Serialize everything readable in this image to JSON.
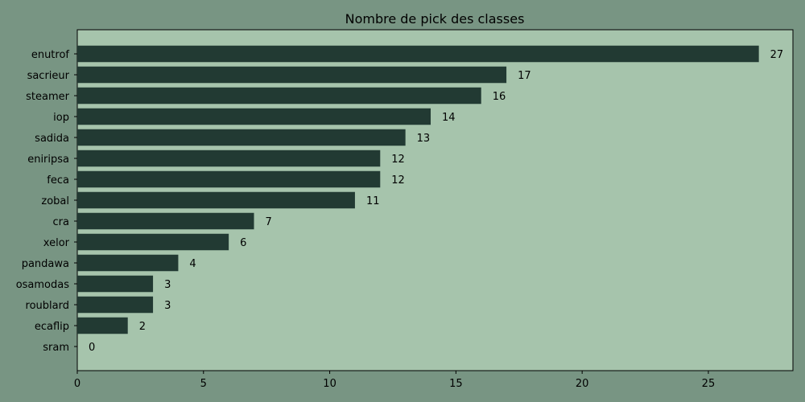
{
  "chart_data": {
    "type": "bar",
    "orientation": "horizontal",
    "title": "Nombre de pick des classes",
    "xlabel": "",
    "ylabel": "",
    "categories": [
      "enutrof",
      "sacrieur",
      "steamer",
      "iop",
      "sadida",
      "eniripsa",
      "feca",
      "zobal",
      "cra",
      "xelor",
      "pandawa",
      "osamodas",
      "roublard",
      "ecaflip",
      "sram"
    ],
    "values": [
      27,
      17,
      16,
      14,
      13,
      12,
      12,
      11,
      7,
      6,
      4,
      3,
      3,
      2,
      0
    ],
    "xlim": [
      0,
      28.35
    ],
    "xticks": [
      0,
      5,
      10,
      15,
      20,
      25
    ],
    "grid": false,
    "data_labels": true,
    "colors": {
      "figure_background": "#789583",
      "plot_background": "#A6C4AC",
      "bar": "#223A33",
      "text": "#000000"
    }
  }
}
